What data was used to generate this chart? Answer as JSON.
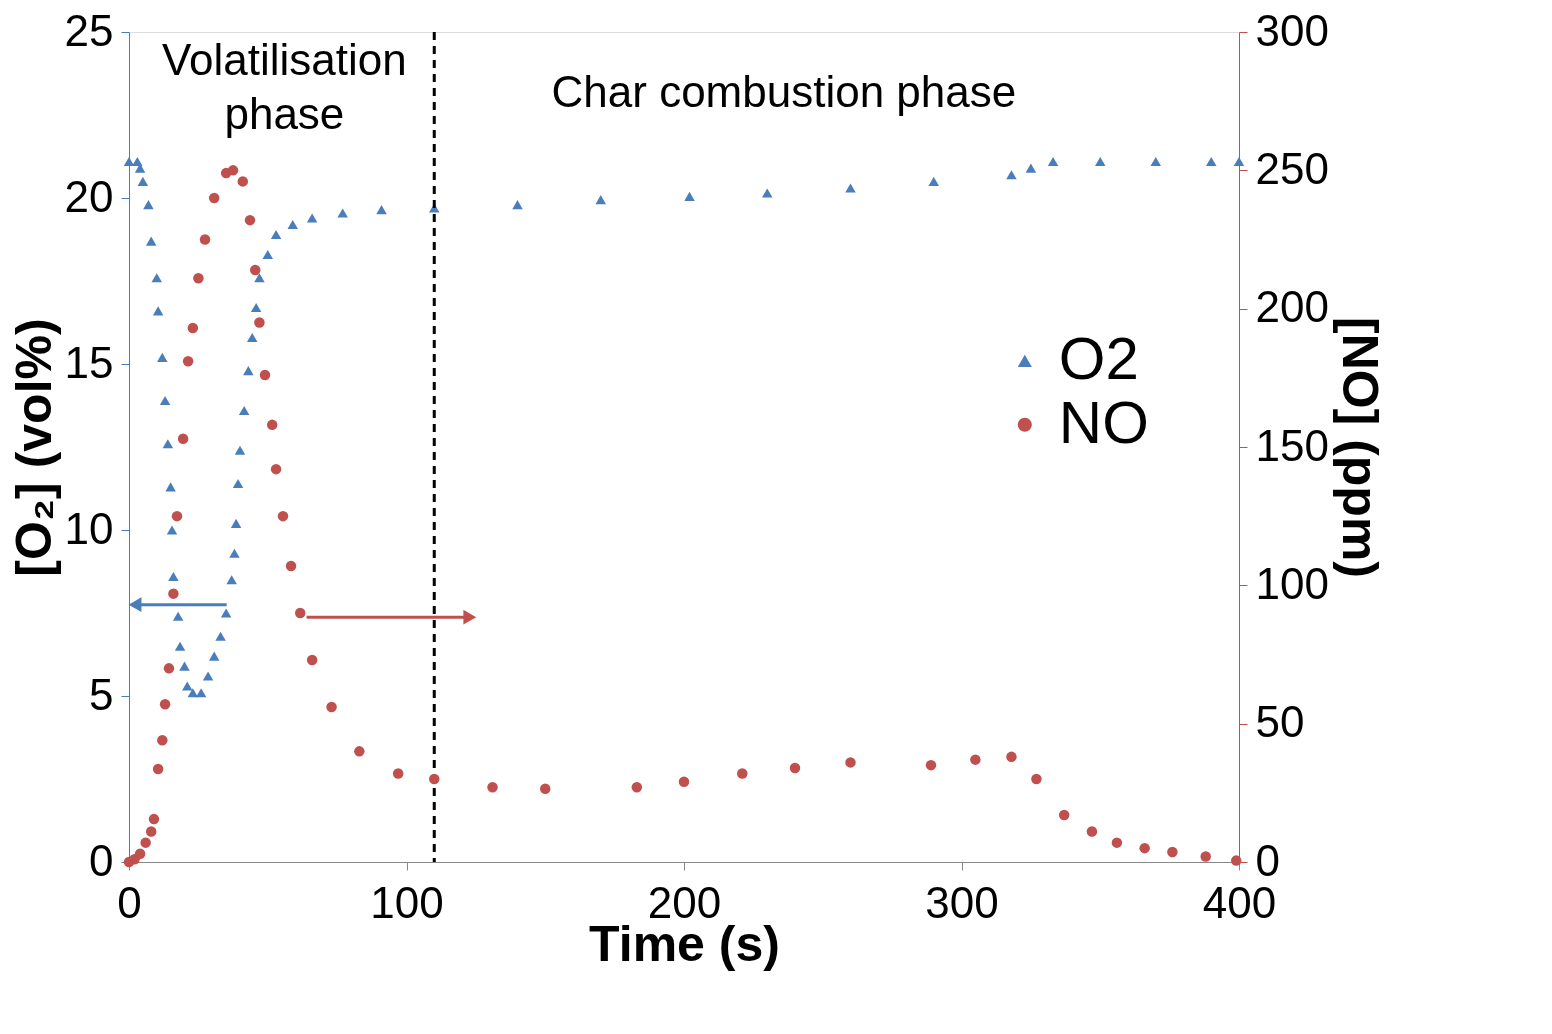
{
  "chart_data": {
    "type": "scatter",
    "xlabel": "Time (s)",
    "ylabel": "[O₂] (vol%)",
    "y2label": "[NO] (ppm)",
    "xlim": [
      0,
      400
    ],
    "xticks": [
      0,
      100,
      200,
      300,
      400
    ],
    "ylim": [
      0,
      25
    ],
    "yticks": [
      0,
      5,
      10,
      15,
      20,
      25
    ],
    "y2lim": [
      0,
      300
    ],
    "y2ticks": [
      0,
      50,
      100,
      150,
      200,
      250,
      300
    ],
    "grid": false,
    "legend": "right",
    "annotations": [
      "Volatilisation phase",
      "Char combustion phase"
    ],
    "ref_lines": [
      {
        "axis": "x",
        "value": 110,
        "color": "#000000",
        "line_style": "dashed"
      }
    ],
    "series": [
      {
        "name": "O2",
        "color": "#4a7ebb",
        "marker": "triangle",
        "x": [
          0,
          3,
          4,
          5,
          7,
          8,
          10,
          10.5,
          12,
          13,
          14,
          15,
          15.5,
          16,
          17.7,
          18.4,
          20,
          21,
          23,
          26,
          28.5,
          30.7,
          33,
          35,
          37,
          38,
          38.6,
          39.3,
          40,
          41.5,
          43,
          44.4,
          45.8,
          47,
          50,
          53,
          59,
          66,
          77,
          91,
          110,
          140,
          170,
          202,
          230,
          260,
          290,
          318,
          325,
          333,
          350,
          370,
          390,
          400
        ],
        "values": [
          21.1,
          21.1,
          20.9,
          20.5,
          19.8,
          18.7,
          17.6,
          16.6,
          15.2,
          13.9,
          12.6,
          11.3,
          10.0,
          8.6,
          7.4,
          6.5,
          5.9,
          5.3,
          5.1,
          5.1,
          5.6,
          6.2,
          6.8,
          7.5,
          8.5,
          9.3,
          10.2,
          11.4,
          12.4,
          13.6,
          14.8,
          15.8,
          16.7,
          17.6,
          18.3,
          18.9,
          19.2,
          19.4,
          19.55,
          19.65,
          19.7,
          19.8,
          19.95,
          20.05,
          20.15,
          20.3,
          20.5,
          20.7,
          20.9,
          21.1,
          21.1,
          21.1,
          21.1,
          21.1
        ]
      },
      {
        "name": "NO",
        "color": "#c0504d",
        "marker": "circle",
        "axis": "y2",
        "x": [
          0,
          2,
          4,
          6,
          8,
          9,
          10.5,
          12,
          13,
          14.4,
          16,
          17.3,
          19.5,
          21.3,
          23,
          25,
          27.4,
          30.7,
          35,
          37.5,
          41,
          43.6,
          45.5,
          47,
          49,
          51.6,
          53,
          55.5,
          58.4,
          61.7,
          66,
          73,
          83,
          97,
          110,
          131,
          150,
          183,
          200,
          221,
          240,
          260,
          289,
          305,
          318,
          327,
          337,
          347,
          356,
          366,
          376,
          388,
          399
        ],
        "values": [
          0,
          1,
          3,
          7,
          11,
          15.5,
          33.6,
          44,
          57,
          70,
          97,
          125,
          153,
          181,
          193,
          211,
          225,
          240,
          249,
          250,
          246,
          232,
          214,
          195,
          176,
          158,
          142,
          125,
          107,
          90,
          73,
          56,
          40,
          32,
          30,
          27,
          26.5,
          27,
          29,
          32,
          34,
          36,
          35,
          37,
          38,
          30,
          17,
          11,
          7,
          5,
          3.6,
          2,
          0.5
        ]
      }
    ]
  }
}
